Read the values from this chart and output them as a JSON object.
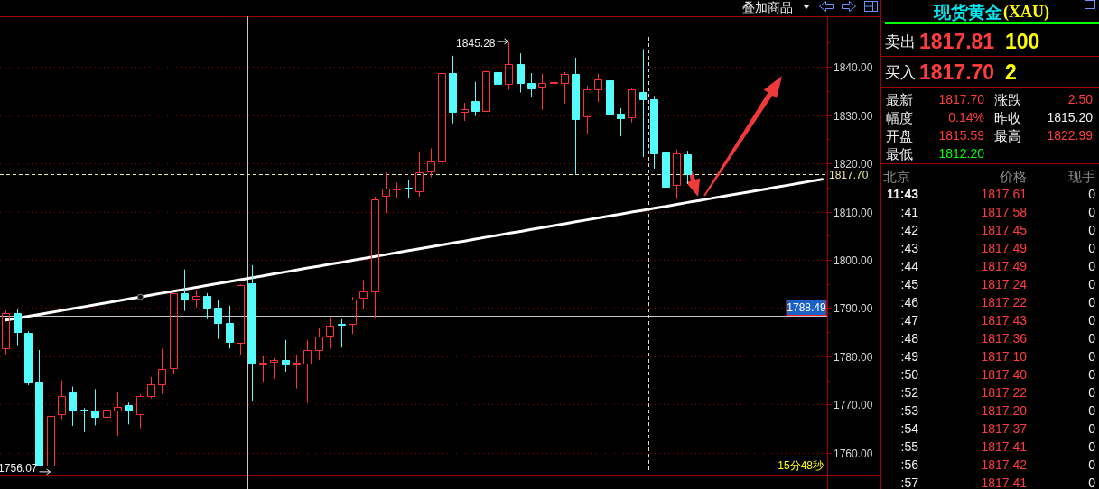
{
  "chart_data": [
    {
      "type": "candlestick",
      "categories": [
        null,
        null,
        null,
        null,
        null,
        null,
        null,
        null,
        null,
        null,
        null,
        null,
        null,
        null,
        null,
        null,
        null,
        null,
        null,
        null,
        null,
        null,
        null,
        null,
        null,
        null,
        null,
        null,
        null,
        null,
        null,
        null,
        null,
        null,
        null,
        null,
        null,
        null,
        null,
        null,
        null,
        null,
        null,
        null,
        null,
        null,
        null,
        null,
        null,
        null,
        null,
        null,
        null,
        null,
        null,
        null,
        null,
        null,
        null,
        null,
        null,
        null,
        null,
        null,
        null,
        null,
        null,
        null,
        null,
        null,
        null,
        null,
        null,
        null
      ],
      "ohlc": [
        [
          1781.7,
          1789.5,
          1780.2,
          1789.0
        ],
        [
          1789.0,
          1789.9,
          1782.3,
          1785.0
        ],
        [
          1784.9,
          1785.2,
          1774.0,
          1774.8
        ],
        [
          1774.8,
          1781.3,
          1757.4,
          1757.4
        ],
        [
          1757.4,
          1770.1,
          1756.07,
          1767.7
        ],
        [
          1768.1,
          1775.0,
          1767.0,
          1771.7
        ],
        [
          1772.6,
          1773.7,
          1765.6,
          1768.7
        ],
        [
          1768.9,
          1769.3,
          1764.3,
          1768.7
        ],
        [
          1768.8,
          1773.2,
          1765.7,
          1767.4
        ],
        [
          1767.4,
          1772.6,
          1765.6,
          1768.9
        ],
        [
          1768.8,
          1772.6,
          1763.5,
          1769.6
        ],
        [
          1769.8,
          1770.4,
          1765.9,
          1768.7
        ],
        [
          1768.1,
          1772.1,
          1765.1,
          1771.7
        ],
        [
          1771.7,
          1775.7,
          1771.3,
          1774.2
        ],
        [
          1774.2,
          1781.6,
          1772.2,
          1777.4
        ],
        [
          1777.5,
          1793.1,
          1776.3,
          1793.1
        ],
        [
          1793.1,
          1798.0,
          1789.4,
          1791.7
        ],
        [
          1791.9,
          1793.8,
          1790.1,
          1792.5
        ],
        [
          1792.6,
          1793.1,
          1787.7,
          1790.1
        ],
        [
          1790.1,
          1791.6,
          1783.6,
          1787.0
        ],
        [
          1787.0,
          1790.5,
          1781.6,
          1782.9
        ],
        [
          1782.8,
          1794.9,
          1780.2,
          1794.7
        ],
        [
          1795.1,
          1798.9,
          1770.8,
          1778.4
        ],
        [
          1778.3,
          1780.0,
          1774.7,
          1778.7
        ],
        [
          1778.8,
          1779.6,
          1775.3,
          1779.2
        ],
        [
          1779.2,
          1783.4,
          1776.8,
          1778.3
        ],
        [
          1778.3,
          1780.2,
          1773.3,
          1778.6
        ],
        [
          1778.5,
          1783.3,
          1770.3,
          1781.3
        ],
        [
          1781.3,
          1785.8,
          1779.2,
          1784.1
        ],
        [
          1784.2,
          1788.1,
          1781.6,
          1786.4
        ],
        [
          1786.8,
          1787.7,
          1781.8,
          1786.5
        ],
        [
          1786.7,
          1792.3,
          1784.6,
          1791.8
        ],
        [
          1792.2,
          1795.8,
          1789.7,
          1793.4
        ],
        [
          1793.4,
          1813.1,
          1787.9,
          1812.6
        ],
        [
          1813.2,
          1818.1,
          1809.7,
          1814.8
        ],
        [
          1814.6,
          1816.0,
          1812.8,
          1814.7
        ],
        [
          1814.9,
          1816.6,
          1812.8,
          1814.7
        ],
        [
          1814.3,
          1822.3,
          1813.1,
          1818.1
        ],
        [
          1818.4,
          1823.1,
          1817.1,
          1820.4
        ],
        [
          1820.4,
          1843.2,
          1817.1,
          1838.7
        ],
        [
          1838.7,
          1842.3,
          1828.3,
          1830.6
        ],
        [
          1830.7,
          1832.5,
          1828.8,
          1831.2
        ],
        [
          1832.9,
          1836.9,
          1829.8,
          1830.9
        ],
        [
          1830.9,
          1839.2,
          1830.9,
          1839.0
        ],
        [
          1838.9,
          1839.0,
          1833.0,
          1836.4
        ],
        [
          1836.4,
          1845.28,
          1835.3,
          1840.5
        ],
        [
          1840.5,
          1842.8,
          1834.7,
          1836.6
        ],
        [
          1836.6,
          1838.7,
          1833.7,
          1835.6
        ],
        [
          1835.9,
          1838.6,
          1831.1,
          1836.6
        ],
        [
          1836.6,
          1838.2,
          1833.3,
          1836.8
        ],
        [
          1836.6,
          1838.9,
          1832.4,
          1838.5
        ],
        [
          1838.5,
          1841.9,
          1817.8,
          1829.1
        ],
        [
          1829.8,
          1836.1,
          1826.2,
          1835.3
        ],
        [
          1835.3,
          1838.6,
          1832.7,
          1837.4
        ],
        [
          1837.3,
          1837.7,
          1828.8,
          1830.1
        ],
        [
          1830.3,
          1831.4,
          1825.6,
          1829.4
        ],
        [
          1829.6,
          1835.7,
          1828.5,
          1835.3
        ],
        [
          1834.8,
          1843.7,
          1821.3,
          1833.3
        ],
        [
          1833.3,
          1834.0,
          1818.9,
          1822.0
        ],
        [
          1822.3,
          1822.5,
          1812.3,
          1815.2
        ],
        [
          1815.6,
          1822.9,
          1812.6,
          1822.0
        ],
        [
          1821.8,
          1822.6,
          1815.7,
          1817.7
        ],
        null,
        null,
        null,
        null,
        null,
        null,
        null,
        null,
        null,
        null,
        null,
        null
      ],
      "colors": [
        "#ff3232",
        "#54fcfc",
        "#54fcfc",
        "#54fcfc",
        "#ff3232",
        "#ff3232",
        "#54fcfc",
        "#54fcfc",
        "#54fcfc",
        "#ff3232",
        "#ff3232",
        "#54fcfc",
        "#ff3232",
        "#ff3232",
        "#ff3232",
        "#ff3232",
        "#54fcfc",
        "#ff3232",
        "#54fcfc",
        "#54fcfc",
        "#54fcfc",
        "#ff3232",
        "#54fcfc",
        "#ff3232",
        "#ff3232",
        "#54fcfc",
        "#ff3232",
        "#ff3232",
        "#ff3232",
        "#ff3232",
        "#54fcfc",
        "#ff3232",
        "#ff3232",
        "#ff3232",
        "#ff3232",
        "#ff3232",
        "#54fcfc",
        "#ff3232",
        "#ff3232",
        "#ff3232",
        "#54fcfc",
        "#ff3232",
        "#54fcfc",
        "#ff3232",
        "#54fcfc",
        "#ff3232",
        "#54fcfc",
        "#54fcfc",
        "#ff3232",
        "#ff3232",
        "#ff3232",
        "#54fcfc",
        "#ff3232",
        "#ff3232",
        "#54fcfc",
        "#54fcfc",
        "#ff3232",
        "#54fcfc",
        "#54fcfc",
        "#54fcfc",
        "#ff3232",
        "#54fcfc",
        null,
        null,
        null,
        null,
        null,
        null,
        null,
        null,
        null,
        null,
        null,
        null
      ],
      "series": [
        {
          "type": "line",
          "color": "#ffffff",
          "values": [
            1787.5,
            1787.9,
            1788.3,
            1788.7,
            1789.1,
            1789.5,
            1789.9,
            1790.3,
            1790.7,
            1791.1,
            1791.5,
            1791.9,
            1792.3,
            1792.7,
            1793.1,
            1793.5,
            1793.9,
            1794.3,
            1794.7,
            1795.1,
            1795.5,
            1795.9,
            1796.3,
            1796.7,
            1797.1,
            1797.5,
            1797.9,
            1798.3,
            1798.7,
            1799.1,
            1799.5,
            1799.9,
            1800.3,
            1800.7,
            1801.1,
            1801.5,
            1801.9,
            1802.3,
            1802.7,
            1803.1,
            1803.5,
            1803.9,
            1804.3,
            1804.7,
            1805.1,
            1805.5,
            1805.9,
            1806.3,
            1806.7,
            1807.1,
            1807.5,
            1807.9,
            1808.3,
            1808.7,
            1809.1,
            1809.5,
            1809.9,
            1810.3,
            1810.7,
            1811.1,
            1811.5,
            1811.9,
            1812.3,
            1812.7,
            1813.1,
            1813.5,
            1813.9,
            1814.3,
            1814.7,
            1815.1,
            1815.5,
            1815.9,
            1816.3,
            1816.7
          ]
        }
      ],
      "ylim": [
        1755.3,
        1850.5
      ],
      "yticks": [
        {
          "value": 1760,
          "label": "1760.00"
        },
        {
          "value": 1765,
          "label": null
        },
        {
          "value": 1770,
          "label": "1770.00"
        },
        {
          "value": 1775,
          "label": null
        },
        {
          "value": 1780,
          "label": "1780.00"
        },
        {
          "value": 1785,
          "label": null
        },
        {
          "value": 1790,
          "label": "1790.00"
        },
        {
          "value": 1795,
          "label": null
        },
        {
          "value": 1800,
          "label": "1800.00"
        },
        {
          "value": 1805,
          "label": null
        },
        {
          "value": 1810,
          "label": "1810.00"
        },
        {
          "value": 1815,
          "label": null
        },
        {
          "value": 1820,
          "label": "1820.00"
        },
        {
          "value": 1825,
          "label": null
        },
        {
          "value": 1830,
          "label": "1830.00"
        },
        {
          "value": 1835,
          "label": null
        },
        {
          "value": 1840,
          "label": "1840.00"
        },
        {
          "value": 1845,
          "label": null
        }
      ],
      "grid": "y",
      "tick_labels": "y",
      "ref_lines": [
        {
          "axis": "y",
          "value": 1817.7,
          "label": "1817.70",
          "color": "#e8e8a0",
          "line_style": "dashed"
        },
        {
          "axis": "y",
          "value": 1788.49,
          "label": "1788.49",
          "color": "#c8c8c8",
          "line_style": "solid"
        }
      ],
      "annotations": [
        "1845.28",
        "1756.07",
        "15分48秒",
        "叠加商品"
      ]
    },
    {
      "type": "other",
      "title": "现货黄金",
      "subtitle": "(XAU)",
      "annotations": [
        "卖出",
        "1817.81",
        "100",
        "买入",
        "1817.70",
        "2",
        "最新",
        "1817.70",
        "涨跌",
        "2.50",
        "幅度",
        "0.14%",
        "昨收",
        "1815.20",
        "开盘",
        "1815.59",
        "最高",
        "1822.99",
        "最低",
        "1812.20",
        "北京",
        "价格",
        "现手",
        "11:43",
        "1817.61",
        "0",
        ":41",
        "1817.58",
        "0",
        ":42",
        "1817.45",
        "0",
        ":43",
        "1817.49",
        "0",
        ":44",
        "1817.49",
        "0",
        ":45",
        "1817.24",
        "0",
        ":46",
        "1817.22",
        "0",
        ":47",
        "1817.43",
        "0",
        ":48",
        "1817.36",
        "0",
        ":49",
        "1817.10",
        "0",
        ":50",
        "1817.40",
        "0",
        ":52",
        "1817.22",
        "0",
        ":53",
        "1817.20",
        "0",
        ":54",
        "1817.37",
        "0",
        ":55",
        "1817.41",
        "0",
        ":56",
        "1817.42",
        "0",
        ":57",
        "1817.41",
        "0"
      ]
    }
  ]
}
